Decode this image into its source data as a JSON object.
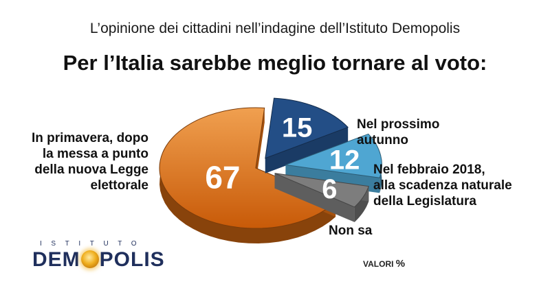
{
  "header": {
    "subtitle": "L’opinione dei cittadini nell’indagine dell’Istituto Demopolis",
    "title": "Per l’Italia sarebbe meglio tornare al voto:"
  },
  "chart_data": {
    "type": "pie",
    "style": "3d-exploded",
    "unit": "%",
    "slices": [
      {
        "label_lines": [
          "In primavera, dopo",
          "la messa a punto",
          "della nuova Legge",
          "elettorale"
        ],
        "value": 67,
        "value_label": "67",
        "color": "#dc6c12"
      },
      {
        "label_lines": [
          "Nel prossimo",
          "autunno"
        ],
        "value": 15,
        "value_label": "15",
        "color": "#234e86"
      },
      {
        "label_lines": [
          "Nel febbraio 2018,",
          "alla scadenza naturale",
          "della Legislatura"
        ],
        "value": 12,
        "value_label": "12",
        "color": "#4fa6d2"
      },
      {
        "label_lines": [
          "Non sa"
        ],
        "value": 6,
        "value_label": "6",
        "color": "#7d7d7d"
      }
    ]
  },
  "logo": {
    "superscript": "ISTITUTO",
    "name_before": "DEM",
    "name_after": "POLIS"
  },
  "footer": {
    "note": "VALORI",
    "unit_symbol": "%"
  }
}
